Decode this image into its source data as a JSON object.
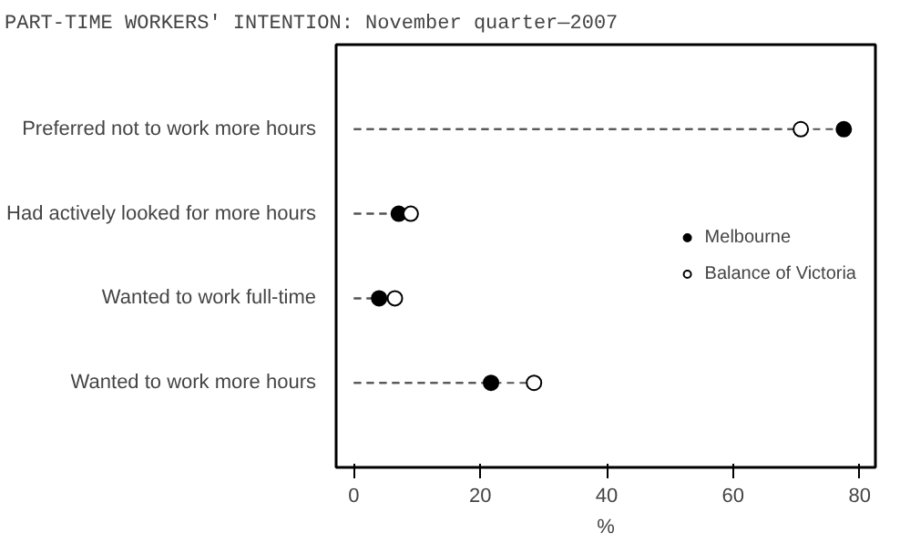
{
  "chart_data": {
    "type": "lollipop",
    "orientation": "horizontal",
    "title": "PART-TIME WORKERS' INTENTION: November quarter—2007",
    "xlabel": "%",
    "categories": [
      "Preferred not to work more hours",
      "Had actively looked for more hours",
      "Wanted to work full-time",
      "Wanted to work more hours"
    ],
    "series": [
      {
        "name": "Melbourne",
        "color": "#000000",
        "values": [
          77.5,
          7.1,
          4.0,
          21.7
        ]
      },
      {
        "name": "Balance of Victoria",
        "color": "#ffffff",
        "values": [
          70.7,
          9.0,
          6.5,
          28.5
        ]
      }
    ],
    "xlim": [
      -2.8,
      82.5
    ],
    "xticks": [
      0,
      20,
      40,
      60,
      80
    ],
    "grid": false,
    "legend": "right",
    "marker": "circle",
    "line_style": "dashed"
  }
}
